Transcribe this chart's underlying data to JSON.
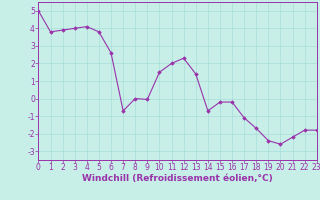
{
  "x": [
    0,
    1,
    2,
    3,
    4,
    5,
    6,
    7,
    8,
    9,
    10,
    11,
    12,
    13,
    14,
    15,
    16,
    17,
    18,
    19,
    20,
    21,
    22,
    23
  ],
  "y": [
    5.0,
    3.8,
    3.9,
    4.0,
    4.1,
    3.8,
    2.6,
    -0.7,
    0.0,
    -0.05,
    1.5,
    2.0,
    2.3,
    1.4,
    -0.7,
    -0.2,
    -0.2,
    -1.1,
    -1.7,
    -2.4,
    -2.6,
    -2.2,
    -1.8,
    -1.8
  ],
  "line_color": "#9933AA",
  "marker": "D",
  "marker_size": 1.8,
  "bg_color": "#C8EEE8",
  "grid_color": "#A8DDDA",
  "xlabel": "Windchill (Refroidissement éolien,°C)",
  "xlabel_fontsize": 6.5,
  "xlim": [
    0,
    23
  ],
  "ylim": [
    -3.5,
    5.5
  ],
  "yticks": [
    -3,
    -2,
    -1,
    0,
    1,
    2,
    3,
    4,
    5
  ],
  "xticks": [
    0,
    1,
    2,
    3,
    4,
    5,
    6,
    7,
    8,
    9,
    10,
    11,
    12,
    13,
    14,
    15,
    16,
    17,
    18,
    19,
    20,
    21,
    22,
    23
  ],
  "ytick_labels": [
    "-3",
    "-2",
    "-1",
    "0",
    "1",
    "2",
    "3",
    "4",
    "5"
  ],
  "tick_fontsize": 5.5,
  "line_width": 0.8
}
